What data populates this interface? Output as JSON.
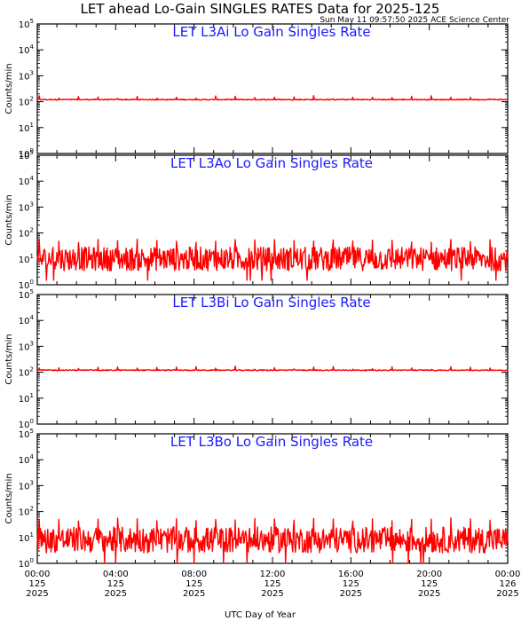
{
  "figure": {
    "title": "LET ahead Lo-Gain SINGLES RATES Data for 2025-125",
    "timestamp": "Sun May 11 09:57:50 2025 ACE Science Center",
    "xlabel": "UTC Day of Year"
  },
  "colors": {
    "series": "#ff0000",
    "panel_title": "#1a1aff",
    "axis": "#000000"
  },
  "chart_data": [
    {
      "type": "line",
      "title": "LET L3Ai Lo Gain Singles Rate",
      "ylabel": "Counts/min",
      "yscale": "log",
      "ylim": [
        1,
        100000
      ],
      "yticks": [
        "10^0",
        "10^1",
        "10^2",
        "10^3",
        "10^4",
        "10^5"
      ],
      "xlim": [
        "2025-125 00:00",
        "2025-126 00:00"
      ],
      "series": [
        {
          "typical_value": 120,
          "noise_range": [
            105,
            135
          ],
          "periodic_spike_value": 150
        }
      ]
    },
    {
      "type": "line",
      "title": "LET L3Ao Lo Gain Singles Rate",
      "ylabel": "Counts/min",
      "yscale": "log",
      "ylim": [
        1,
        100000
      ],
      "yticks": [
        "10^0",
        "10^1",
        "10^2",
        "10^3",
        "10^4",
        "10^5"
      ],
      "xlim": [
        "2025-125 00:00",
        "2025-126 00:00"
      ],
      "series": [
        {
          "typical_value": 10,
          "noise_range": [
            3,
            25
          ],
          "periodic_spike_value": 50
        }
      ]
    },
    {
      "type": "line",
      "title": "LET L3Bi Lo Gain Singles Rate",
      "ylabel": "Counts/min",
      "yscale": "log",
      "ylim": [
        1,
        100000
      ],
      "yticks": [
        "10^0",
        "10^1",
        "10^2",
        "10^3",
        "10^4",
        "10^5"
      ],
      "xlim": [
        "2025-125 00:00",
        "2025-126 00:00"
      ],
      "series": [
        {
          "typical_value": 120,
          "noise_range": [
            105,
            135
          ],
          "periodic_spike_value": 150
        }
      ]
    },
    {
      "type": "line",
      "title": "LET L3Bo Lo Gain Singles Rate",
      "ylabel": "Counts/min",
      "yscale": "log",
      "ylim": [
        1,
        100000
      ],
      "yticks": [
        "10^0",
        "10^1",
        "10^2",
        "10^3",
        "10^4",
        "10^5"
      ],
      "xlim": [
        "2025-125 00:00",
        "2025-126 00:00"
      ],
      "series": [
        {
          "typical_value": 8,
          "noise_range": [
            2,
            20
          ],
          "periodic_spike_value": 50
        }
      ]
    }
  ],
  "x_ticks": [
    {
      "time": "00:00",
      "doy": "125",
      "year": "2025"
    },
    {
      "time": "04:00",
      "doy": "125",
      "year": "2025"
    },
    {
      "time": "08:00",
      "doy": "125",
      "year": "2025"
    },
    {
      "time": "12:00",
      "doy": "125",
      "year": "2025"
    },
    {
      "time": "16:00",
      "doy": "125",
      "year": "2025"
    },
    {
      "time": "20:00",
      "doy": "125",
      "year": "2025"
    },
    {
      "time": "00:00",
      "doy": "126",
      "year": "2025"
    }
  ]
}
